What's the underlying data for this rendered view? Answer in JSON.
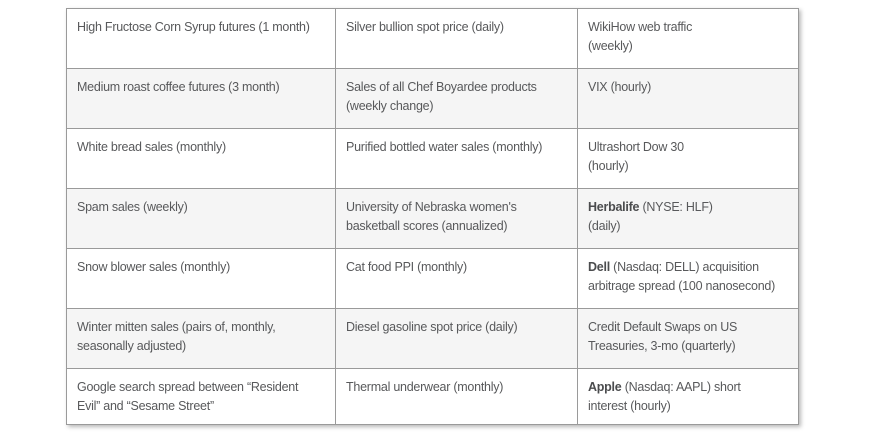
{
  "table": {
    "rows": [
      {
        "cells": [
          {
            "text": "High Fructose Corn Syrup futures (1 month)"
          },
          {
            "text": "Silver bullion spot price (daily)"
          },
          {
            "text": "WikiHow web traffic\n(weekly)"
          }
        ]
      },
      {
        "cells": [
          {
            "text": "Medium roast coffee futures (3 month)"
          },
          {
            "text": "Sales of all Chef Boyardee products\n(weekly change)"
          },
          {
            "text": "VIX (hourly)"
          }
        ]
      },
      {
        "cells": [
          {
            "text": "White bread sales (monthly)"
          },
          {
            "text": "Purified bottled water sales (monthly)"
          },
          {
            "text": "Ultrashort Dow 30\n(hourly)"
          }
        ]
      },
      {
        "cells": [
          {
            "text": "Spam sales (weekly)"
          },
          {
            "text": "University of Nebraska women's\nbasketball scores (annualized)"
          },
          {
            "bold": "Herbalife",
            "text": " (NYSE: HLF)\n(daily)"
          }
        ]
      },
      {
        "cells": [
          {
            "text": "Snow blower sales (monthly)"
          },
          {
            "text": "Cat food PPI (monthly)"
          },
          {
            "bold": "Dell",
            "text": " (Nasdaq: DELL) acquisition\narbitrage spread (100 nanosecond)"
          }
        ]
      },
      {
        "cells": [
          {
            "text": "Winter mitten sales (pairs of, monthly,\nseasonally adjusted)"
          },
          {
            "text": "Diesel gasoline spot price (daily)"
          },
          {
            "text": "Credit Default Swaps on US\nTreasuries, 3-mo (quarterly)"
          }
        ]
      },
      {
        "cells": [
          {
            "text": "Google search spread between “Resident\nEvil” and “Sesame Street”"
          },
          {
            "text": "Thermal underwear (monthly)"
          },
          {
            "bold": "Apple",
            "text": " (Nasdaq: AAPL) short\ninterest (hourly)"
          }
        ]
      }
    ]
  },
  "colors": {
    "page_background": "#ffffff",
    "row_stripe": "#f5f5f5",
    "border": "#9a9a9a",
    "text": "#58595b"
  }
}
